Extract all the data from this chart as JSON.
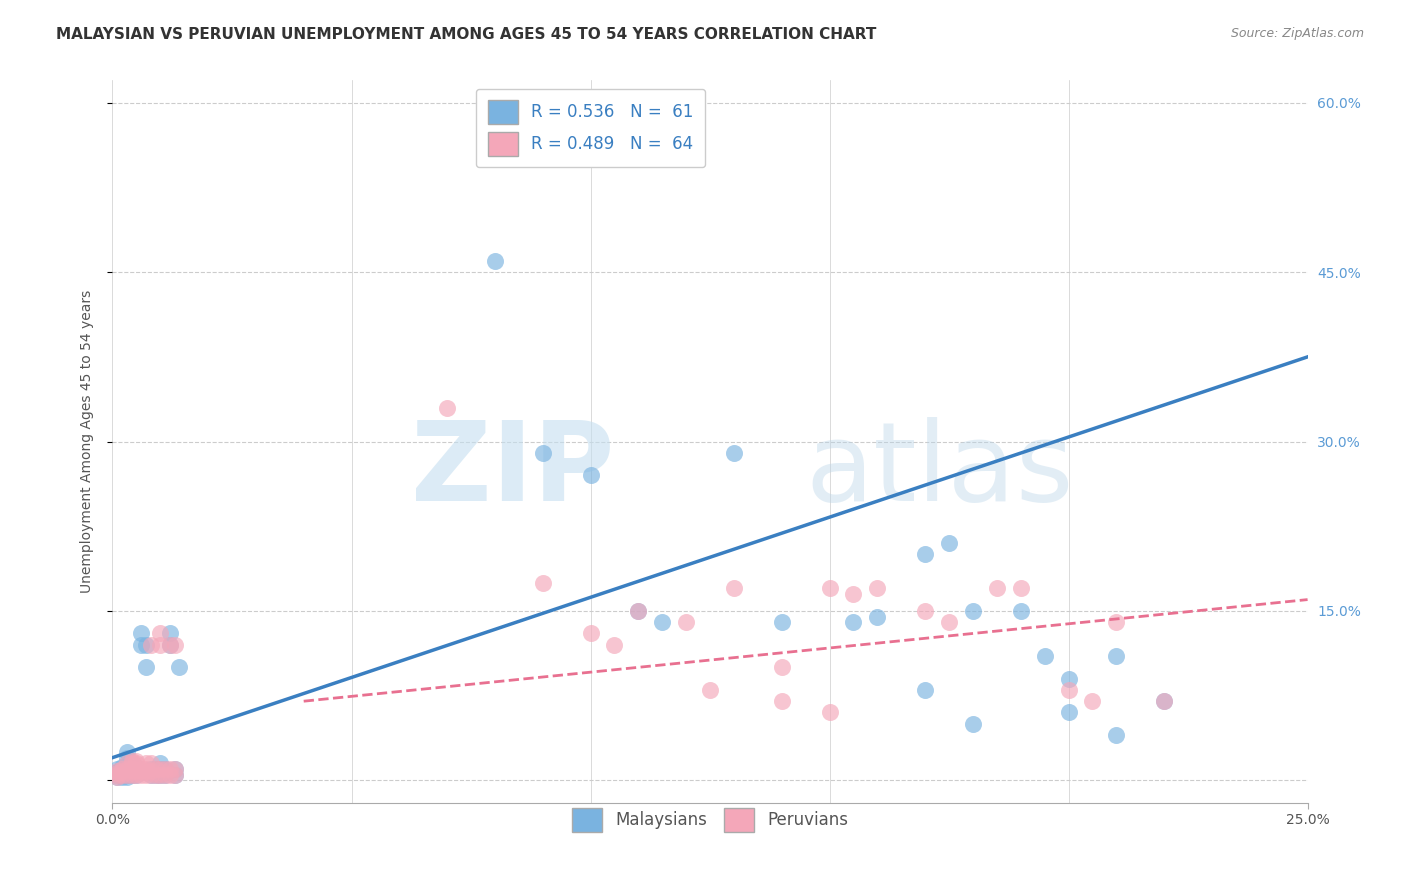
{
  "title": "MALAYSIAN VS PERUVIAN UNEMPLOYMENT AMONG AGES 45 TO 54 YEARS CORRELATION CHART",
  "source": "Source: ZipAtlas.com",
  "ylabel_label": "Unemployment Among Ages 45 to 54 years",
  "malaysian_color": "#7ab3e0",
  "peruvian_color": "#f4a7b9",
  "regression_line_color_blue": "#3a7fc1",
  "regression_line_color_pink": "#e87090",
  "watermark_zip": "ZIP",
  "watermark_atlas": "atlas",
  "xlim": [
    0.0,
    0.25
  ],
  "ylim": [
    -0.02,
    0.62
  ],
  "yticks": [
    0.0,
    0.15,
    0.3,
    0.45,
    0.6
  ],
  "ytick_labels": [
    "",
    "15.0%",
    "30.0%",
    "45.0%",
    "60.0%"
  ],
  "xtick_labels": [
    "0.0%",
    "25.0%"
  ],
  "xticks": [
    0.0,
    0.25
  ],
  "blue_line_x0": 0.0,
  "blue_line_y0": 0.02,
  "blue_line_x1": 0.25,
  "blue_line_y1": 0.375,
  "pink_line_x0": 0.04,
  "pink_line_y0": 0.07,
  "pink_line_x1": 0.25,
  "pink_line_y1": 0.16,
  "malaysian_points": [
    [
      0.001,
      0.005
    ],
    [
      0.001,
      0.01
    ],
    [
      0.001,
      0.007
    ],
    [
      0.001,
      0.003
    ],
    [
      0.002,
      0.007
    ],
    [
      0.002,
      0.012
    ],
    [
      0.002,
      0.005
    ],
    [
      0.002,
      0.003
    ],
    [
      0.003,
      0.005
    ],
    [
      0.003,
      0.01
    ],
    [
      0.003,
      0.02
    ],
    [
      0.003,
      0.025
    ],
    [
      0.003,
      0.003
    ],
    [
      0.003,
      0.007
    ],
    [
      0.004,
      0.005
    ],
    [
      0.004,
      0.008
    ],
    [
      0.004,
      0.01
    ],
    [
      0.004,
      0.015
    ],
    [
      0.005,
      0.005
    ],
    [
      0.005,
      0.01
    ],
    [
      0.005,
      0.012
    ],
    [
      0.006,
      0.12
    ],
    [
      0.006,
      0.13
    ],
    [
      0.007,
      0.1
    ],
    [
      0.007,
      0.12
    ],
    [
      0.008,
      0.005
    ],
    [
      0.008,
      0.01
    ],
    [
      0.009,
      0.005
    ],
    [
      0.009,
      0.01
    ],
    [
      0.01,
      0.005
    ],
    [
      0.01,
      0.01
    ],
    [
      0.01,
      0.015
    ],
    [
      0.011,
      0.005
    ],
    [
      0.011,
      0.01
    ],
    [
      0.012,
      0.12
    ],
    [
      0.012,
      0.13
    ],
    [
      0.013,
      0.005
    ],
    [
      0.013,
      0.01
    ],
    [
      0.014,
      0.1
    ],
    [
      0.08,
      0.46
    ],
    [
      0.09,
      0.29
    ],
    [
      0.1,
      0.27
    ],
    [
      0.11,
      0.15
    ],
    [
      0.115,
      0.14
    ],
    [
      0.13,
      0.29
    ],
    [
      0.14,
      0.14
    ],
    [
      0.155,
      0.14
    ],
    [
      0.16,
      0.145
    ],
    [
      0.17,
      0.2
    ],
    [
      0.175,
      0.21
    ],
    [
      0.18,
      0.15
    ],
    [
      0.19,
      0.15
    ],
    [
      0.195,
      0.11
    ],
    [
      0.2,
      0.09
    ],
    [
      0.21,
      0.11
    ],
    [
      0.22,
      0.07
    ],
    [
      0.17,
      0.08
    ],
    [
      0.18,
      0.05
    ],
    [
      0.2,
      0.06
    ],
    [
      0.21,
      0.04
    ]
  ],
  "peruvian_points": [
    [
      0.001,
      0.005
    ],
    [
      0.001,
      0.008
    ],
    [
      0.001,
      0.003
    ],
    [
      0.001,
      0.006
    ],
    [
      0.002,
      0.005
    ],
    [
      0.002,
      0.008
    ],
    [
      0.002,
      0.01
    ],
    [
      0.003,
      0.005
    ],
    [
      0.003,
      0.008
    ],
    [
      0.003,
      0.01
    ],
    [
      0.003,
      0.015
    ],
    [
      0.004,
      0.005
    ],
    [
      0.004,
      0.008
    ],
    [
      0.004,
      0.01
    ],
    [
      0.004,
      0.015
    ],
    [
      0.004,
      0.017
    ],
    [
      0.005,
      0.005
    ],
    [
      0.005,
      0.008
    ],
    [
      0.005,
      0.01
    ],
    [
      0.005,
      0.015
    ],
    [
      0.005,
      0.017
    ],
    [
      0.006,
      0.005
    ],
    [
      0.006,
      0.008
    ],
    [
      0.006,
      0.01
    ],
    [
      0.007,
      0.005
    ],
    [
      0.007,
      0.008
    ],
    [
      0.007,
      0.01
    ],
    [
      0.007,
      0.015
    ],
    [
      0.008,
      0.005
    ],
    [
      0.008,
      0.008
    ],
    [
      0.008,
      0.015
    ],
    [
      0.008,
      0.12
    ],
    [
      0.009,
      0.005
    ],
    [
      0.009,
      0.01
    ],
    [
      0.01,
      0.005
    ],
    [
      0.01,
      0.01
    ],
    [
      0.01,
      0.12
    ],
    [
      0.01,
      0.13
    ],
    [
      0.011,
      0.005
    ],
    [
      0.011,
      0.01
    ],
    [
      0.012,
      0.005
    ],
    [
      0.012,
      0.01
    ],
    [
      0.012,
      0.12
    ],
    [
      0.013,
      0.005
    ],
    [
      0.013,
      0.01
    ],
    [
      0.013,
      0.12
    ],
    [
      0.07,
      0.33
    ],
    [
      0.09,
      0.175
    ],
    [
      0.1,
      0.13
    ],
    [
      0.105,
      0.12
    ],
    [
      0.11,
      0.15
    ],
    [
      0.12,
      0.14
    ],
    [
      0.125,
      0.08
    ],
    [
      0.13,
      0.17
    ],
    [
      0.14,
      0.1
    ],
    [
      0.15,
      0.17
    ],
    [
      0.155,
      0.165
    ],
    [
      0.16,
      0.17
    ],
    [
      0.17,
      0.15
    ],
    [
      0.175,
      0.14
    ],
    [
      0.185,
      0.17
    ],
    [
      0.19,
      0.17
    ],
    [
      0.2,
      0.08
    ],
    [
      0.205,
      0.07
    ],
    [
      0.21,
      0.14
    ],
    [
      0.22,
      0.07
    ],
    [
      0.14,
      0.07
    ],
    [
      0.15,
      0.06
    ]
  ],
  "title_fontsize": 11,
  "axis_label_fontsize": 10,
  "tick_fontsize": 10,
  "legend_fontsize": 12
}
